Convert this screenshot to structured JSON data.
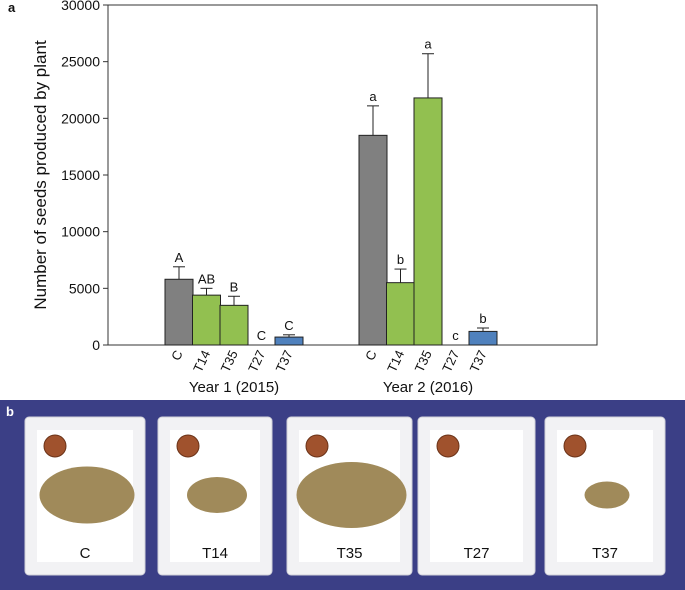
{
  "chart_data": {
    "type": "bar",
    "panel_label": "a",
    "y_label": "Number of seeds produced by plant",
    "groups": [
      "Year 1 (2015)",
      "Year 2 (2016)"
    ],
    "series": [
      {
        "name": "C",
        "color": "#808080",
        "values": [
          5800,
          18500
        ],
        "errors": [
          1100,
          2600
        ],
        "letters": [
          "A",
          "a"
        ]
      },
      {
        "name": "T14",
        "color": "#92c050",
        "values": [
          4400,
          5500
        ],
        "errors": [
          600,
          1200
        ],
        "letters": [
          "AB",
          "b"
        ]
      },
      {
        "name": "T35",
        "color": "#92c050",
        "values": [
          3500,
          21800
        ],
        "errors": [
          800,
          3900
        ],
        "letters": [
          "B",
          "a"
        ]
      },
      {
        "name": "T27",
        "color": "#92c050",
        "values": [
          0,
          0
        ],
        "errors": [
          null,
          null
        ],
        "letters": [
          "C",
          "c"
        ]
      },
      {
        "name": "T37",
        "color": "#4f81bd",
        "values": [
          700,
          1200
        ],
        "errors": [
          200,
          300
        ],
        "letters": [
          "C",
          "b"
        ]
      }
    ],
    "ylim": [
      0,
      30000
    ],
    "yticks": [
      0,
      5000,
      10000,
      15000,
      20000,
      25000,
      30000
    ]
  },
  "photo": {
    "panel_label": "b",
    "labels": [
      "C",
      "T14",
      "T35",
      "T27",
      "T37"
    ]
  }
}
